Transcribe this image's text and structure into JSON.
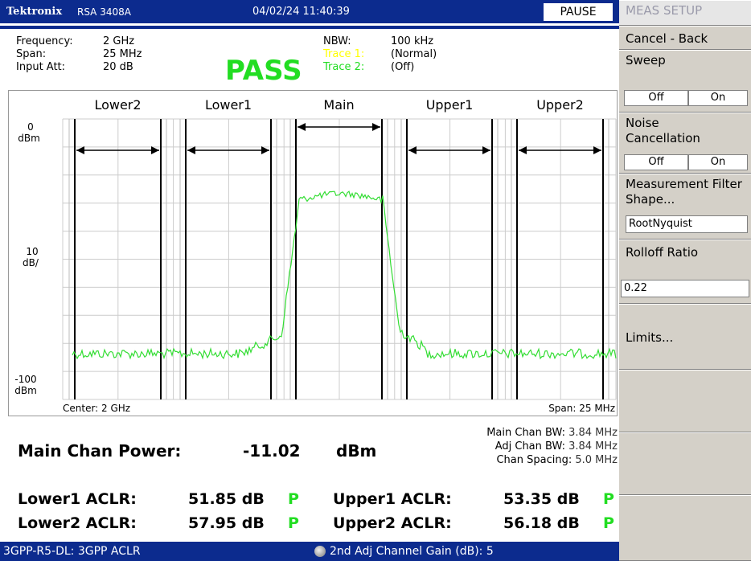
{
  "header": {
    "brand": "Tektronix",
    "model": "RSA 3408A",
    "datetime": "04/02/24 11:40:39",
    "status": "PAUSE"
  },
  "settings": {
    "left": [
      {
        "label": "Frequency:",
        "value": "2 GHz"
      },
      {
        "label": "Span:",
        "value": "25 MHz"
      },
      {
        "label": "Input Att:",
        "value": "20 dB"
      }
    ],
    "verdict": "PASS",
    "right": [
      {
        "label": "NBW:",
        "value": "100 kHz"
      },
      {
        "label": "Trace 1:",
        "value": "(Normal)"
      },
      {
        "label": "Trace 2:",
        "value": "(Off)"
      }
    ]
  },
  "graph": {
    "channels": [
      "Lower2",
      "Lower1",
      "Main",
      "Upper1",
      "Upper2"
    ],
    "y_top": [
      "0",
      "dBm"
    ],
    "y_scale": [
      "10",
      "dB/"
    ],
    "y_bottom": [
      "-100",
      "dBm"
    ],
    "center": "Center: 2 GHz",
    "span": "Span: 25 MHz"
  },
  "results": {
    "main_power_label": "Main Chan Power:",
    "main_power_value": "-11.02",
    "main_power_unit": "dBm",
    "bandwidths": [
      {
        "label": "Main Chan BW:",
        "value": "3.84 MHz"
      },
      {
        "label": "Adj Chan BW:",
        "value": "3.84 MHz"
      },
      {
        "label": "Chan Spacing:",
        "value": "5.0 MHz"
      }
    ],
    "aclr": [
      {
        "label": "Lower1 ACLR:",
        "value": "51.85 dB",
        "flag": "P"
      },
      {
        "label": "Upper1 ACLR:",
        "value": "53.35 dB",
        "flag": "P"
      },
      {
        "label": "Lower2 ACLR:",
        "value": "57.95 dB",
        "flag": "P"
      },
      {
        "label": "Upper2 ACLR:",
        "value": "56.18 dB",
        "flag": "P"
      }
    ]
  },
  "status_bar": {
    "mode": "3GPP-R5-DL: 3GPP ACLR",
    "info": "2nd Adj Channel Gain (dB): 5"
  },
  "menu": {
    "title": "MEAS SETUP",
    "cancel": "Cancel - Back",
    "sweep": {
      "label": "Sweep",
      "off": "Off",
      "on": "On"
    },
    "noise": {
      "label": "Noise Cancellation",
      "off": "Off",
      "on": "On"
    },
    "filter": {
      "label": "Measurement Filter Shape...",
      "value": "RootNyquist"
    },
    "rolloff": {
      "label": "Rolloff Ratio",
      "value": "0.22"
    },
    "limits": "Limits..."
  }
}
